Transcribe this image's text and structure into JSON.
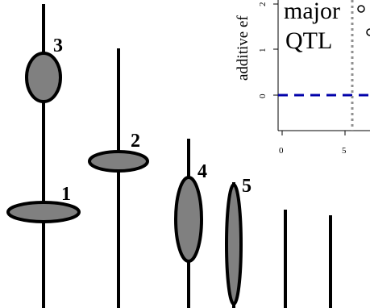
{
  "colors": {
    "chromosome": "#000000",
    "qtl_fill": "#808080",
    "threshold_line": "#0000aa",
    "marker_line": "#909090"
  },
  "diagram": {
    "chromosomes": 7,
    "qtls": [
      {
        "label": "1",
        "shape": "horizontal-ellipse"
      },
      {
        "label": "2",
        "shape": "horizontal-ellipse"
      },
      {
        "label": "3",
        "shape": "circle"
      },
      {
        "label": "4",
        "shape": "vertical-ellipse"
      },
      {
        "label": "5",
        "shape": "vertical-ellipse"
      }
    ]
  },
  "inset_plot": {
    "ylabel": "additive ef",
    "annotation_line1": "major",
    "annotation_line2": "QTL",
    "y_ticks": [
      "0",
      "1",
      "2"
    ],
    "x_ticks": [
      "0",
      "5"
    ]
  }
}
